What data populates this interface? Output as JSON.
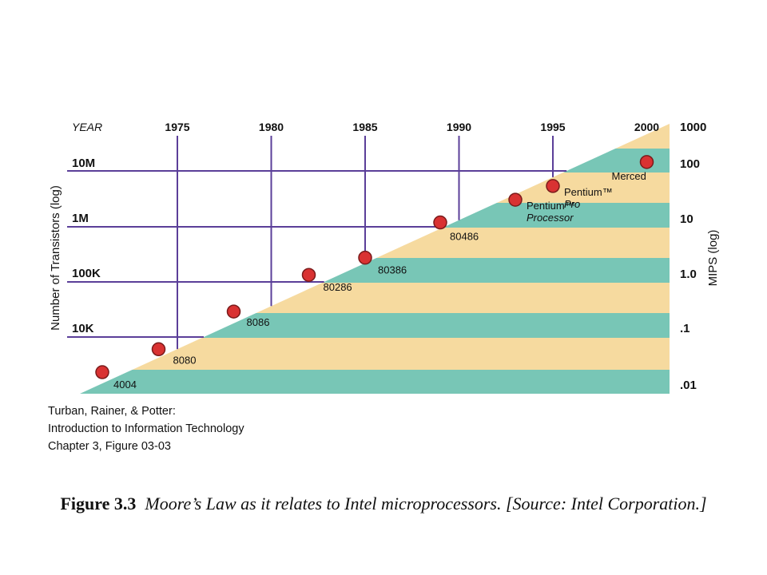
{
  "chart_data": {
    "type": "scatter",
    "x_header": "YEAR",
    "x_ticks": [
      "1975",
      "1980",
      "1985",
      "1990",
      "1995",
      "2000"
    ],
    "y_left_label": "Number of Transistors (log)",
    "y_left_ticks": [
      "10M",
      "1M",
      "100K",
      "10K"
    ],
    "y_right_label": "MIPS (log)",
    "y_right_ticks": [
      "1000",
      "100",
      "10",
      "1.0",
      ".1",
      ".01"
    ],
    "band_colors": [
      "#f6da9f",
      "#78c6b6"
    ],
    "line_color": "#5b3f99",
    "marker_color": "#d93232",
    "points": [
      {
        "name": "4004",
        "year": 1971,
        "transistors": 2300
      },
      {
        "name": "8080",
        "year": 1974,
        "transistors": 6000
      },
      {
        "name": "8086",
        "year": 1978,
        "transistors": 29000
      },
      {
        "name": "80286",
        "year": 1982,
        "transistors": 134000
      },
      {
        "name": "80386",
        "year": 1985,
        "transistors": 275000
      },
      {
        "name": "80486",
        "year": 1989,
        "transistors": 1200000
      },
      {
        "name": "Pentium™",
        "name2": "Processor",
        "year": 1993,
        "transistors": 3100000
      },
      {
        "name": "Pentium™",
        "name2": "Pro",
        "year": 1995,
        "transistors": 5500000
      },
      {
        "name": "Merced",
        "year": 2000,
        "transistors": 15000000
      }
    ]
  },
  "credit": {
    "line1": "Turban, Rainer, & Potter:",
    "line2": "Introduction to Information Technology",
    "line3": "Chapter 3, Figure 03-03"
  },
  "caption": {
    "label": "Figure 3.3",
    "text": "Moore’s Law as it relates to Intel microprocessors. [Source: Intel Corporation.]"
  }
}
